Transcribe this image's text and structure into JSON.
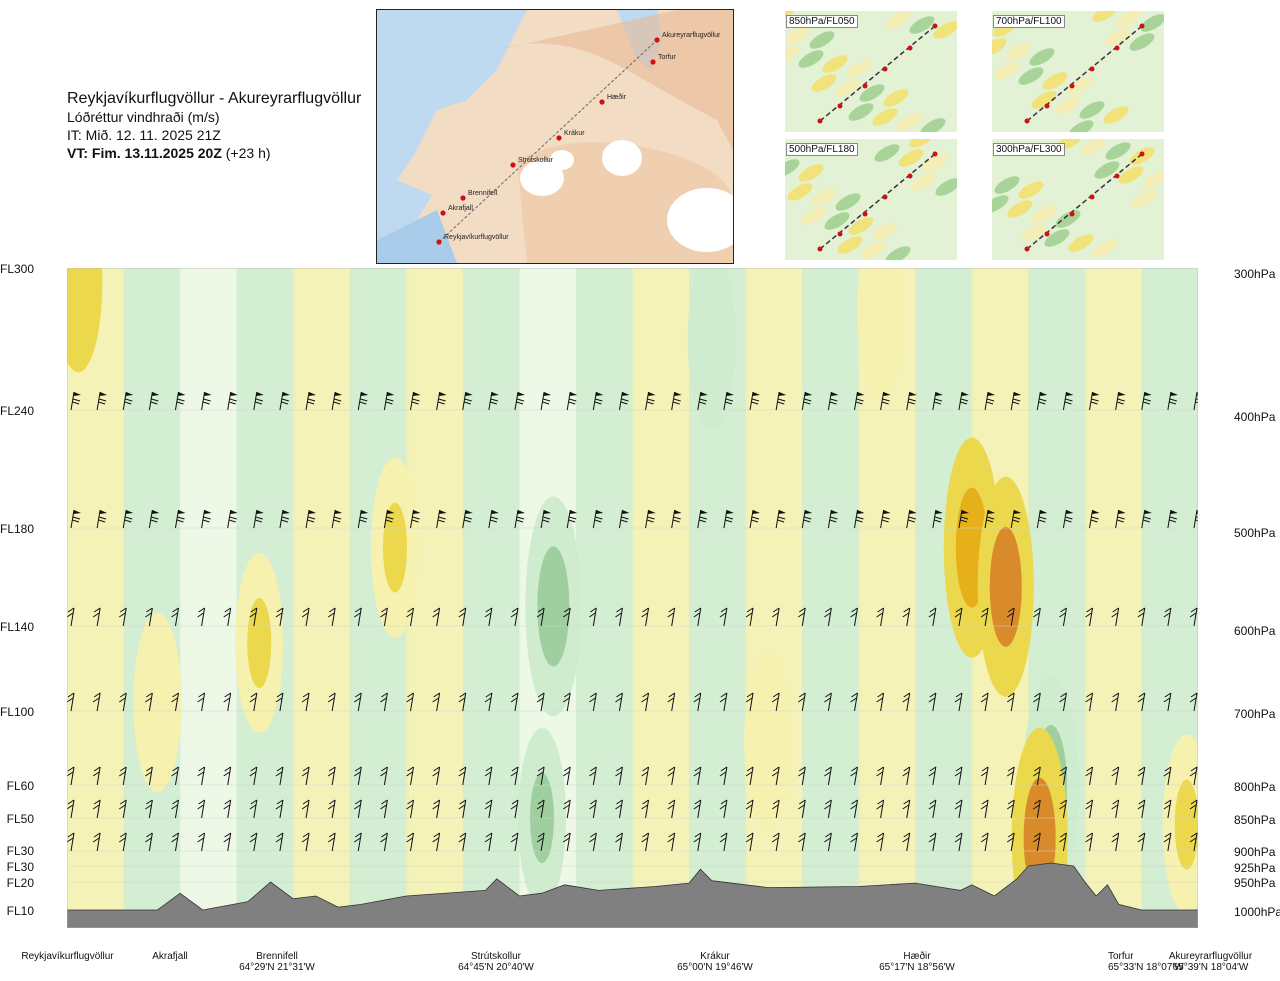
{
  "header": {
    "title": "Reykjavíkurflugvöllur - Akureyrarflugvöllur",
    "subtitle": "Lóðréttur vindhraði (m/s)",
    "issue_time": "IT: Mið. 12. 11. 2025 21Z",
    "valid_time_bold": "VT: Fim. 13.11.2025 20Z",
    "valid_time_rest": " (+23 h)"
  },
  "levels_left": [
    "FL300",
    "FL240",
    "FL180",
    "FL140",
    "FL100",
    "FL60",
    "FL50",
    "FL30",
    "FL30",
    "FL20",
    "FL10"
  ],
  "levels_right": [
    "300hPa",
    "400hPa",
    "500hPa",
    "600hPa",
    "700hPa",
    "800hPa",
    "850hPa",
    "900hPa",
    "925hPa",
    "950hPa",
    "1000hPa"
  ],
  "locations": [
    {
      "name": "Reykjavíkurflugvöllur",
      "coord": ""
    },
    {
      "name": "Akrafjall",
      "coord": ""
    },
    {
      "name": "Brennifell",
      "coord": "64°29'N 21°31'W"
    },
    {
      "name": "Strútskollur",
      "coord": "64°45'N 20°40'W"
    },
    {
      "name": "Krákur",
      "coord": "65°00'N 19°46'W"
    },
    {
      "name": "Hæðir",
      "coord": "65°17'N 18°56'W"
    },
    {
      "name": "Torfur",
      "coord": "65°33'N 18°07'W"
    },
    {
      "name": "Akureyrarflugvöllur",
      "coord": "65°39'N 18°04'W"
    }
  ],
  "map_labels": [
    "Akureyrarflugvöllur",
    "Torfur",
    "Hæðir",
    "Krákur",
    "Strútskollur",
    "Brennifell",
    "Akrafjall",
    "Reykjavíkurflugvöllur"
  ],
  "panels": [
    "850hPa/FL050",
    "700hPa/FL100",
    "500hPa/FL180",
    "300hPa/FL300"
  ],
  "colors": {
    "strong_down": "#9fcf9f",
    "down": "#cfeccf",
    "weak_down": "#eef8e6",
    "weak_up": "#f7f1b0",
    "up": "#ecd84c",
    "strong_up": "#e6b01a",
    "very_strong_up": "#d98a2a",
    "terrain": "#808080",
    "route": "#d01010"
  },
  "chart_data": {
    "type": "heatmap",
    "title": "Reykjavíkurflugvöllur - Akureyrarflugvöllur",
    "variable": "Lóðréttur vindhraði (m/s)",
    "x_categories": [
      "Reykjavíkurflugvöllur",
      "Akrafjall",
      "Brennifell",
      "Strútskollur",
      "Krákur",
      "Hæðir",
      "Torfur",
      "Akureyrarflugvöllur"
    ],
    "y_levels_hPa": [
      300,
      400,
      500,
      600,
      700,
      800,
      850,
      900,
      925,
      950,
      1000
    ],
    "y_levels_FL": [
      "FL300",
      "FL240",
      "FL180",
      "FL140",
      "FL100",
      "FL60",
      "FL50",
      "FL30",
      "FL30",
      "FL20",
      "FL10"
    ],
    "regions": [
      {
        "x": 0.01,
        "p": 310,
        "v": 1.2
      },
      {
        "x": 0.17,
        "p": 620,
        "v": 0.8
      },
      {
        "x": 0.29,
        "p": 520,
        "v": 0.8
      },
      {
        "x": 0.43,
        "p": 580,
        "v": -1.4
      },
      {
        "x": 0.57,
        "p": 350,
        "v": -0.5
      },
      {
        "x": 0.62,
        "p": 740,
        "v": 0.6
      },
      {
        "x": 0.72,
        "p": 330,
        "v": 0.5
      },
      {
        "x": 0.8,
        "p": 520,
        "v": 1.6
      },
      {
        "x": 0.83,
        "p": 560,
        "v": 2.2
      },
      {
        "x": 0.87,
        "p": 800,
        "v": -1.6
      },
      {
        "x": 0.86,
        "p": 880,
        "v": 2.0
      },
      {
        "x": 0.42,
        "p": 850,
        "v": -1.2
      },
      {
        "x": 0.08,
        "p": 690,
        "v": 0.6
      },
      {
        "x": 0.99,
        "p": 860,
        "v": 0.9
      }
    ],
    "terrain_profile": [
      [
        0.0,
        1000
      ],
      [
        0.08,
        1000
      ],
      [
        0.1,
        970
      ],
      [
        0.12,
        1000
      ],
      [
        0.16,
        985
      ],
      [
        0.18,
        950
      ],
      [
        0.2,
        980
      ],
      [
        0.22,
        975
      ],
      [
        0.24,
        995
      ],
      [
        0.26,
        990
      ],
      [
        0.3,
        975
      ],
      [
        0.37,
        965
      ],
      [
        0.38,
        945
      ],
      [
        0.4,
        975
      ],
      [
        0.42,
        970
      ],
      [
        0.44,
        955
      ],
      [
        0.47,
        965
      ],
      [
        0.52,
        958
      ],
      [
        0.55,
        952
      ],
      [
        0.56,
        930
      ],
      [
        0.57,
        948
      ],
      [
        0.62,
        960
      ],
      [
        0.7,
        958
      ],
      [
        0.75,
        952
      ],
      [
        0.79,
        965
      ],
      [
        0.8,
        955
      ],
      [
        0.82,
        975
      ],
      [
        0.84,
        945
      ],
      [
        0.85,
        925
      ],
      [
        0.87,
        920
      ],
      [
        0.89,
        925
      ],
      [
        0.9,
        950
      ],
      [
        0.91,
        975
      ],
      [
        0.92,
        955
      ],
      [
        0.93,
        990
      ],
      [
        0.95,
        1000
      ],
      [
        1.0,
        1000
      ]
    ]
  }
}
